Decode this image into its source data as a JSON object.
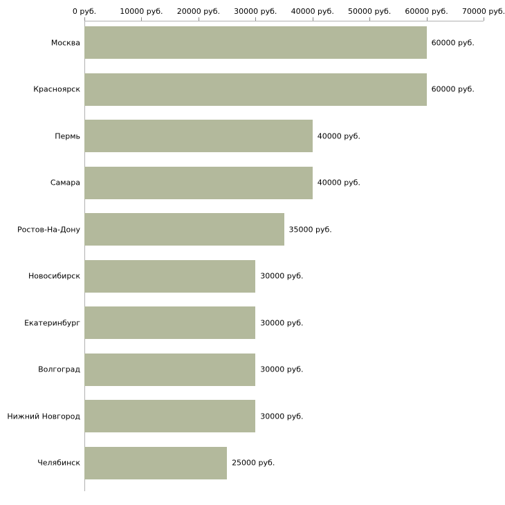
{
  "chart_data": {
    "type": "bar",
    "orientation": "horizontal",
    "title": "",
    "xlabel": "",
    "ylabel": "",
    "categories": [
      "Москва",
      "Красноярск",
      "Пермь",
      "Самара",
      "Ростов-На-Дону",
      "Новосибирск",
      "Екатеринбург",
      "Волгоград",
      "Нижний Новгород",
      "Челябинск"
    ],
    "values": [
      60000,
      60000,
      40000,
      40000,
      35000,
      30000,
      30000,
      30000,
      30000,
      25000
    ],
    "value_labels": [
      "60000 руб.",
      "60000 руб.",
      "40000 руб.",
      "40000 руб.",
      "35000 руб.",
      "30000 руб.",
      "30000 руб.",
      "30000 руб.",
      "30000 руб.",
      "25000 руб."
    ],
    "x_axis": {
      "position": "top",
      "min": 0,
      "max": 70000,
      "ticks": [
        0,
        10000,
        20000,
        30000,
        40000,
        50000,
        60000,
        70000
      ],
      "tick_labels": [
        "0 руб.",
        "10000 руб.",
        "20000 руб.",
        "30000 руб.",
        "40000 руб.",
        "50000 руб.",
        "60000 руб.",
        "70000 руб."
      ]
    },
    "legend": "none",
    "grid": "off",
    "colors": {
      "bar": "#b3b99c",
      "axis": "#b0b0b0",
      "tick": "#888888",
      "text": "#000000",
      "background": "#ffffff"
    }
  }
}
